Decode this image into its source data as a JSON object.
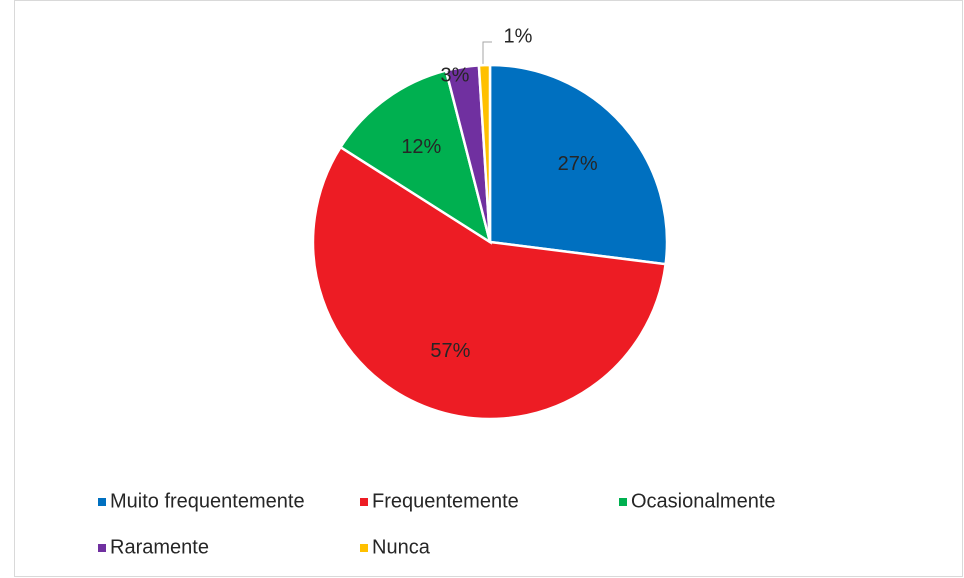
{
  "chart_data": {
    "type": "pie",
    "categories": [
      "Muito frequentemente",
      "Frequentemente",
      "Ocasionalmente",
      "Raramente",
      "Nunca"
    ],
    "values": [
      27,
      57,
      12,
      3,
      1
    ],
    "value_labels": [
      "27%",
      "57%",
      "12%",
      "3%",
      "1%"
    ],
    "colors": [
      "#0070c0",
      "#ed1c24",
      "#00b050",
      "#7030a0",
      "#ffc000"
    ],
    "legend": "bottom"
  }
}
